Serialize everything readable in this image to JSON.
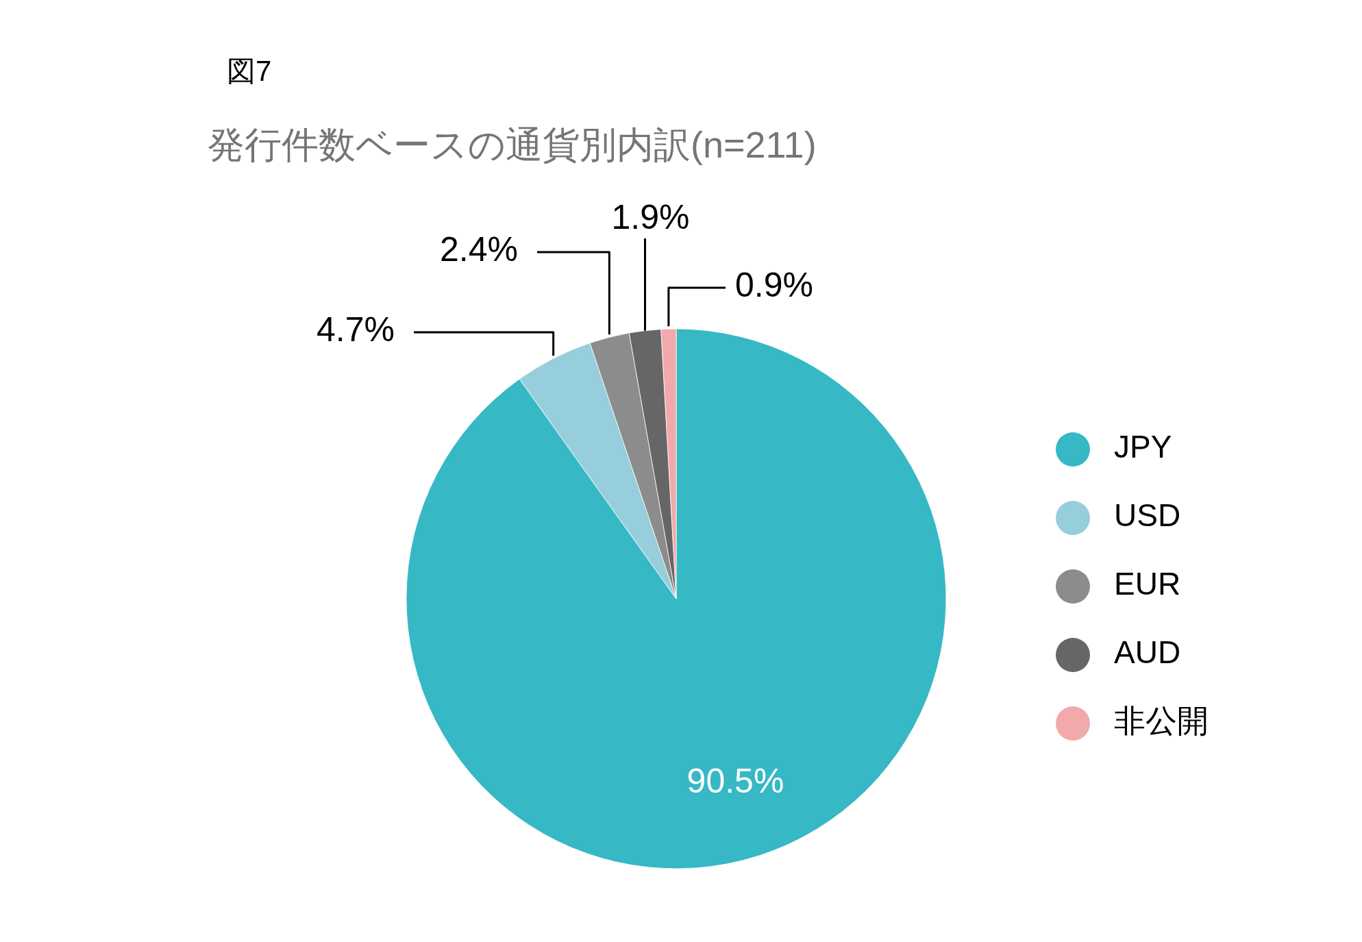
{
  "chart_data": {
    "type": "pie",
    "title": "発行件数ベースの通貨別内訳(n=211)",
    "annotations": [
      "図7"
    ],
    "categories": [
      "JPY",
      "USD",
      "EUR",
      "AUD",
      "非公開"
    ],
    "values": [
      90.5,
      4.7,
      2.4,
      1.9,
      0.9
    ],
    "colors": [
      "#36b8c5",
      "#96cfdb",
      "#8c8c8c",
      "#666666",
      "#f2a9ab"
    ],
    "value_labels": [
      "90.5%",
      "4.7%",
      "2.4%",
      "1.9%",
      "0.9%"
    ],
    "legend": "right"
  }
}
